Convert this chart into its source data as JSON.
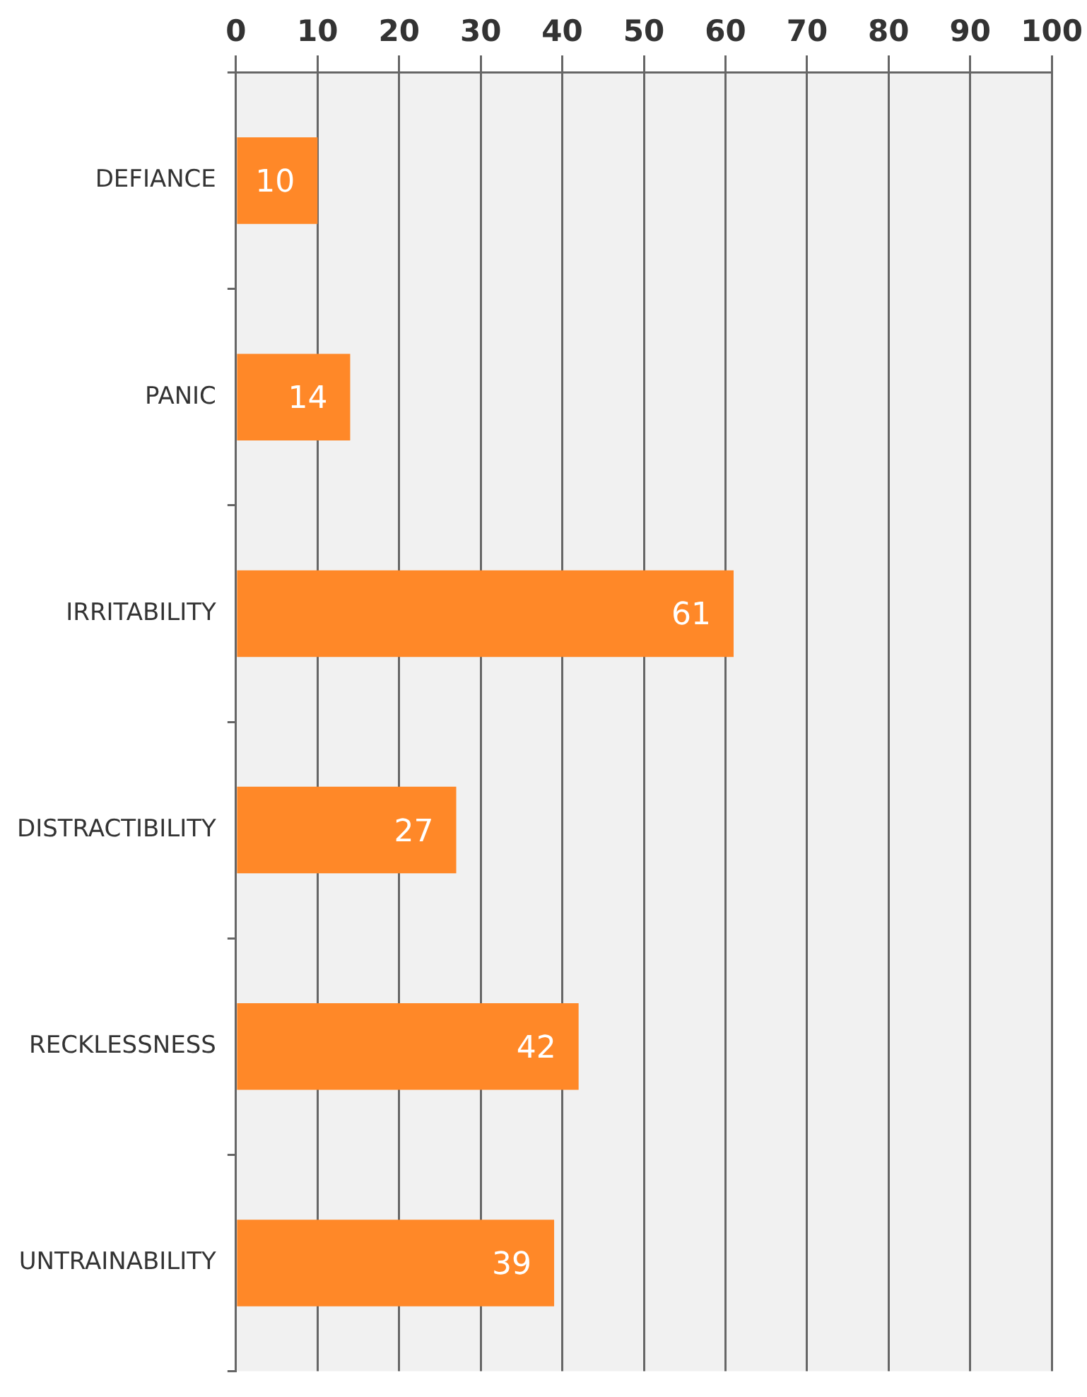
{
  "chart_data": {
    "type": "bar",
    "orientation": "horizontal",
    "categories": [
      "DEFIANCE",
      "PANIC",
      "IRRITABILITY",
      "DISTRACTIBILITY",
      "RECKLESSNESS",
      "UNTRAINABILITY"
    ],
    "values": [
      10,
      14,
      61,
      27,
      42,
      39
    ],
    "color": "#ff8828",
    "xlim": [
      0,
      100
    ],
    "xticks": [
      0,
      10,
      20,
      30,
      40,
      50,
      60,
      70,
      80,
      90,
      100
    ],
    "grid": "x",
    "data_labels": true
  }
}
